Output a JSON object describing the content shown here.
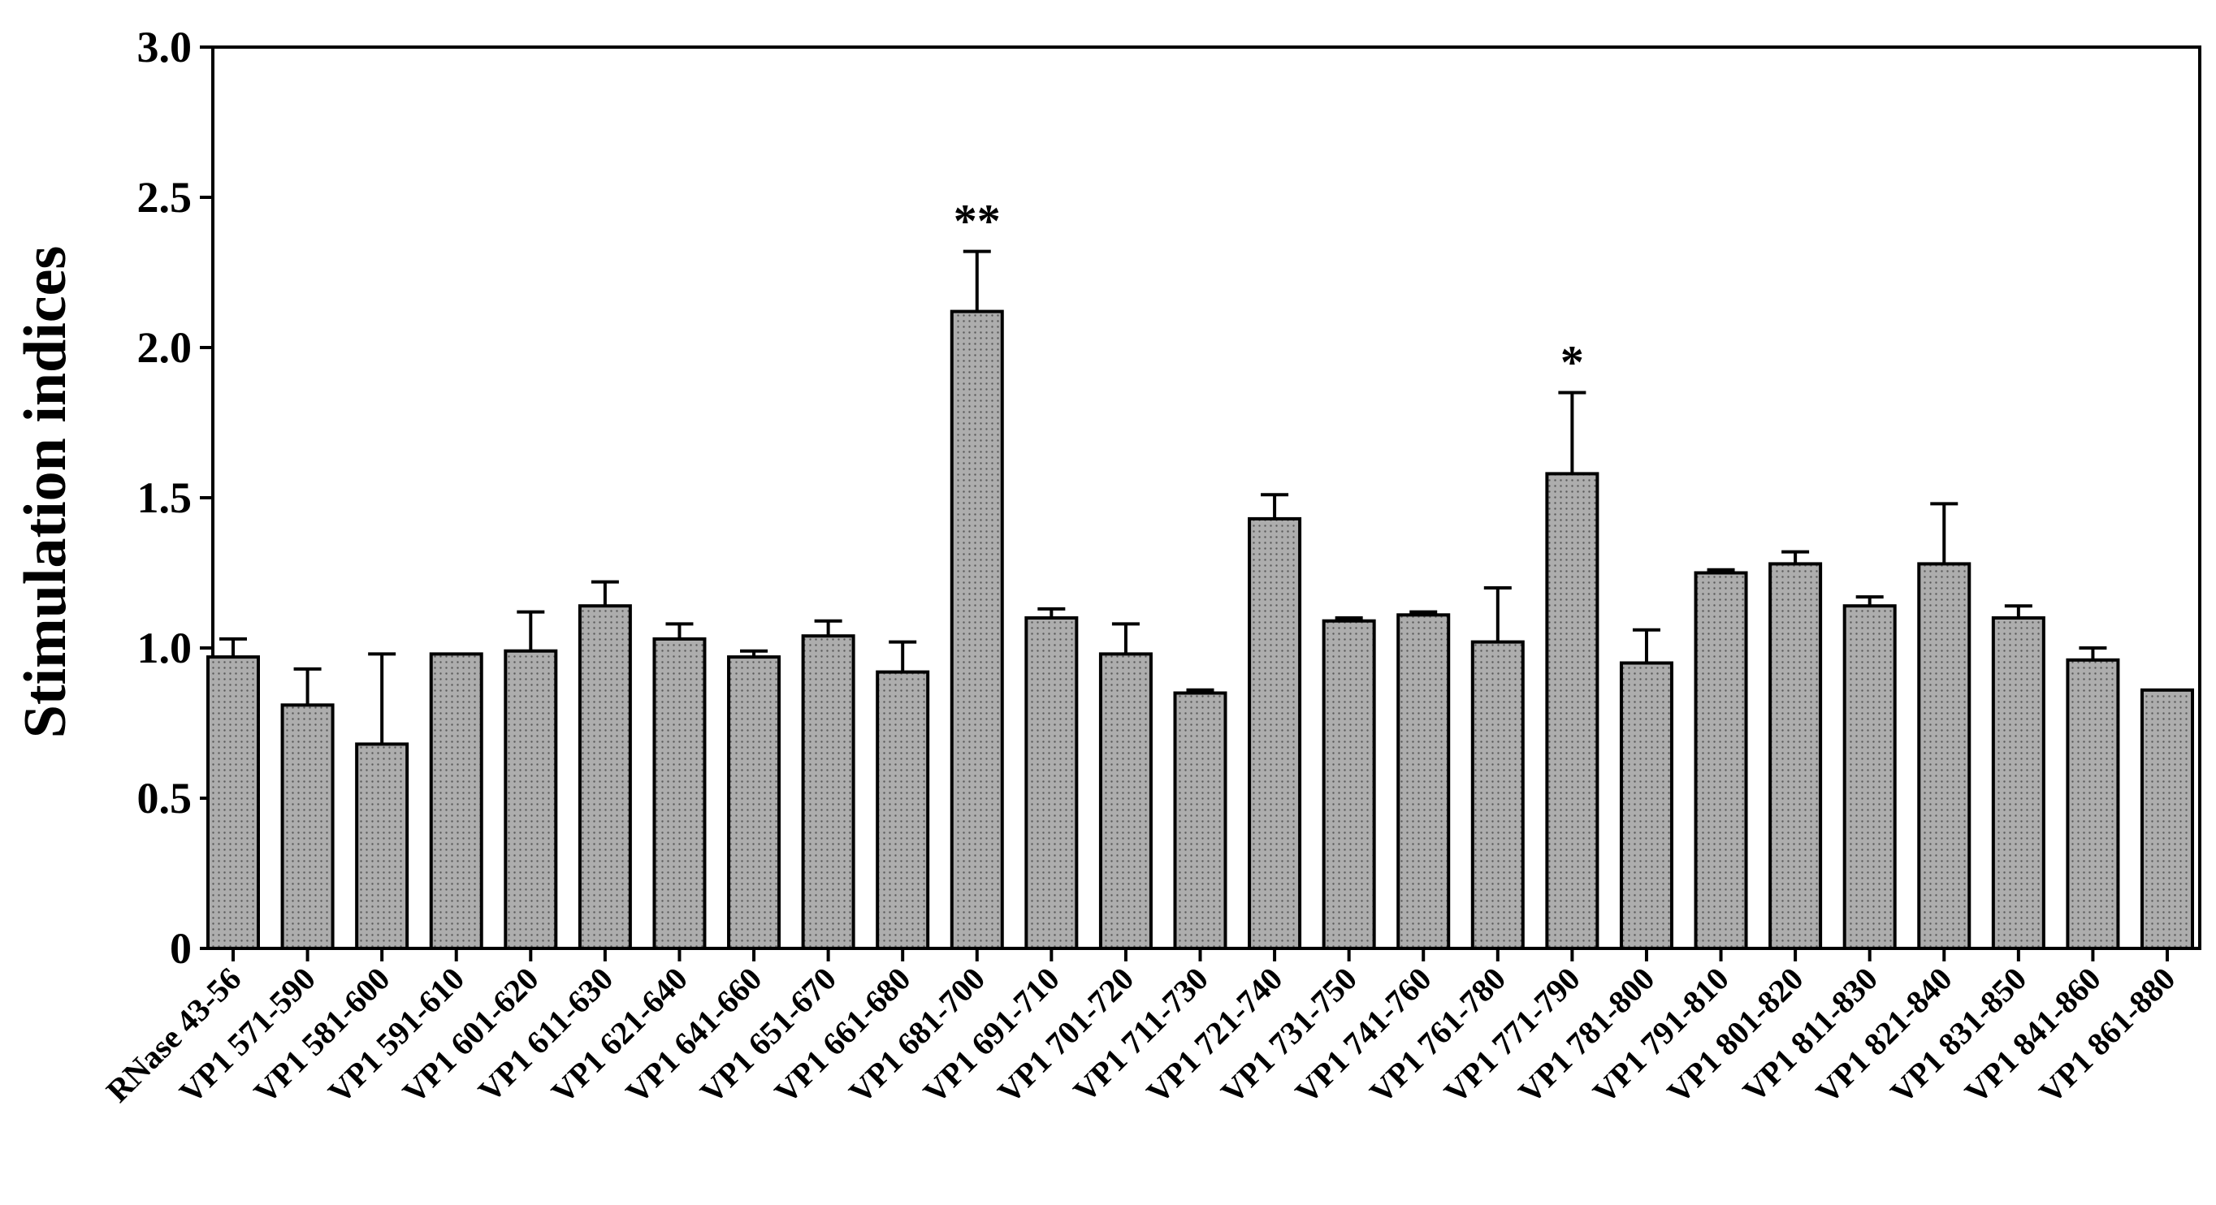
{
  "chart_data": {
    "type": "bar",
    "title": "",
    "xlabel": "",
    "ylabel": "Stimulation indices",
    "ylim": [
      0,
      3.0
    ],
    "yticks": [
      0,
      0.5,
      1.0,
      1.5,
      2.0,
      2.5,
      3.0
    ],
    "ytick_labels": [
      "0",
      "0.5",
      "1.0",
      "1.5",
      "2.0",
      "2.5",
      "3.0"
    ],
    "grid": false,
    "legend": "none",
    "bar_color": "#a8a8a8",
    "categories": [
      "RNase 43-56",
      "VP1 571-590",
      "VP1 581-600",
      "VP1 591-610",
      "VP1 601-620",
      "VP1 611-630",
      "VP1 621-640",
      "VP1 641-660",
      "VP1 651-670",
      "VP1 661-680",
      "VP1 681-700",
      "VP1 691-710",
      "VP1 701-720",
      "VP1 711-730",
      "VP1 721-740",
      "VP1 731-750",
      "VP1 741-760",
      "VP1 761-780",
      "VP1 771-790",
      "VP1 781-800",
      "VP1 791-810",
      "VP1 801-820",
      "VP1 811-830",
      "VP1 821-840",
      "VP1 831-850",
      "VP1 841-860",
      "VP1 861-880"
    ],
    "values": [
      0.97,
      0.81,
      0.68,
      0.98,
      0.99,
      1.14,
      1.03,
      0.97,
      1.04,
      0.92,
      2.12,
      1.1,
      0.98,
      0.85,
      1.43,
      1.09,
      1.11,
      1.02,
      1.58,
      0.95,
      1.25,
      1.28,
      1.14,
      1.28,
      1.1,
      0.96,
      0.86
    ],
    "errors": [
      0.06,
      0.12,
      0.3,
      0.0,
      0.13,
      0.08,
      0.05,
      0.02,
      0.05,
      0.1,
      0.2,
      0.03,
      0.1,
      0.01,
      0.08,
      0.01,
      0.01,
      0.18,
      0.27,
      0.11,
      0.01,
      0.04,
      0.03,
      0.2,
      0.04,
      0.04,
      0.0
    ],
    "annotations": [
      {
        "category": "VP1 681-700",
        "text": "**"
      },
      {
        "category": "VP1 771-790",
        "text": "*"
      }
    ]
  }
}
